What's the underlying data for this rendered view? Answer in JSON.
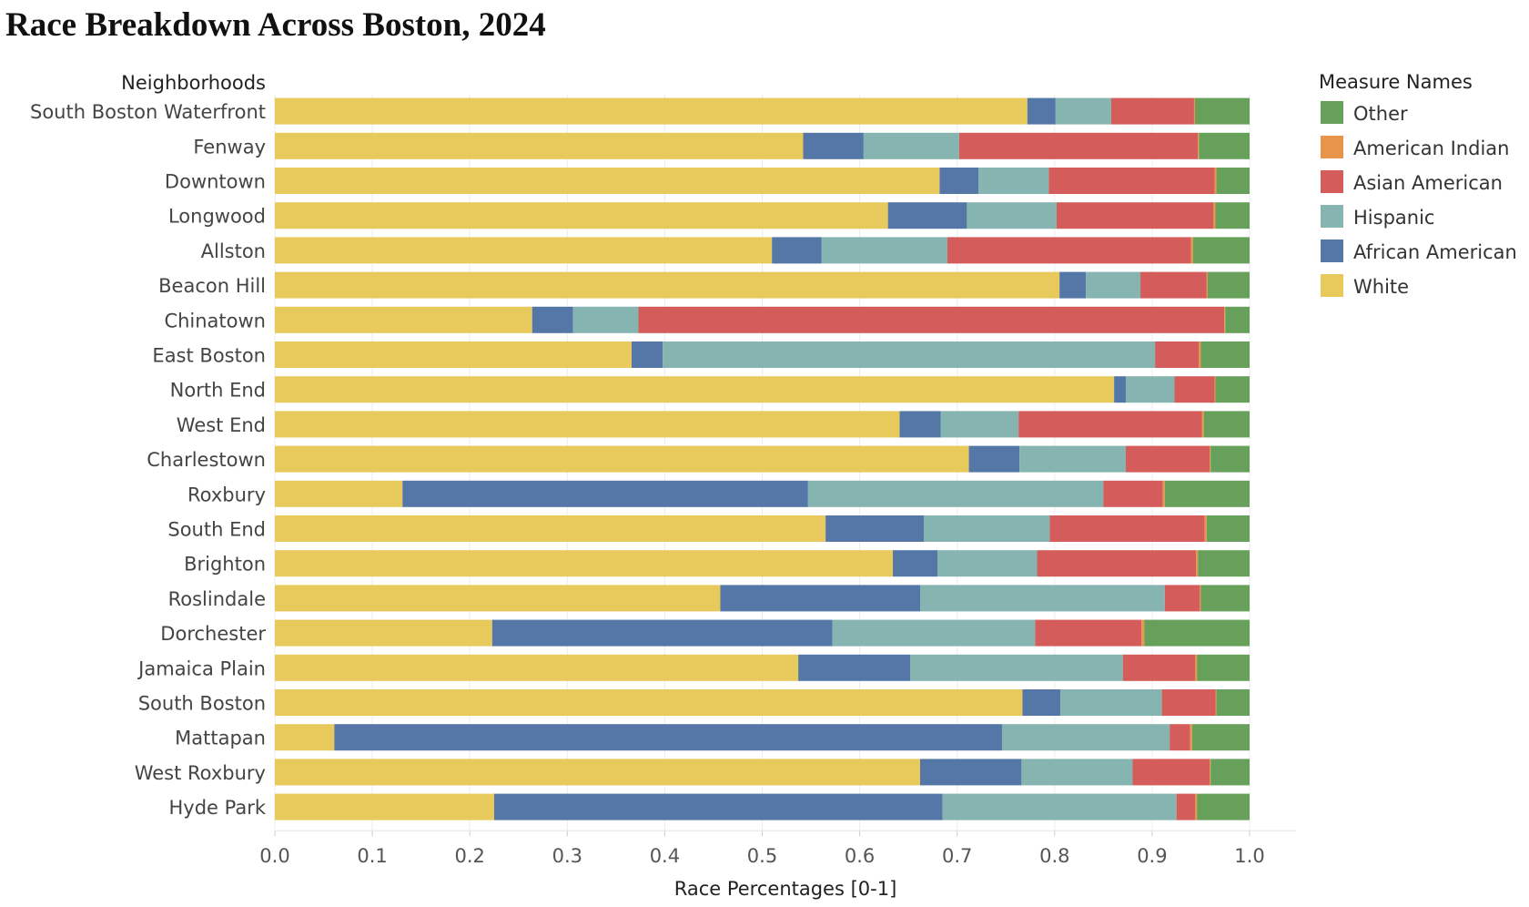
{
  "chart_data": {
    "type": "bar",
    "orientation": "horizontal",
    "stacked": true,
    "title": "Race Breakdown Across Boston, 2024",
    "xlabel": "Race Percentages [0-1]",
    "ylabel": "Neighborhoods",
    "xlim": [
      0,
      1
    ],
    "xticks": [
      "0.0",
      "0.1",
      "0.2",
      "0.3",
      "0.4",
      "0.5",
      "0.6",
      "0.7",
      "0.8",
      "0.9",
      "1.0"
    ],
    "grid": "vertical",
    "legend_title": "Measure Names",
    "legend_position": "right",
    "categories": [
      "South Boston Waterfront",
      "Fenway",
      "Downtown",
      "Longwood",
      "Allston",
      "Beacon Hill",
      "Chinatown",
      "East Boston",
      "North End",
      "West End",
      "Charlestown",
      "Roxbury",
      "South End",
      "Brighton",
      "Roslindale",
      "Dorchester",
      "Jamaica Plain",
      "South Boston",
      "Mattapan",
      "West Roxbury",
      "Hyde Park"
    ],
    "series": [
      {
        "name": "White",
        "color": "#e8c95c",
        "values": [
          0.772,
          0.542,
          0.682,
          0.629,
          0.51,
          0.805,
          0.264,
          0.366,
          0.861,
          0.641,
          0.712,
          0.131,
          0.565,
          0.634,
          0.457,
          0.223,
          0.537,
          0.767,
          0.061,
          0.662,
          0.225
        ]
      },
      {
        "name": "African American",
        "color": "#5577a8",
        "values": [
          0.029,
          0.062,
          0.04,
          0.081,
          0.051,
          0.027,
          0.042,
          0.032,
          0.012,
          0.042,
          0.052,
          0.416,
          0.101,
          0.046,
          0.205,
          0.349,
          0.115,
          0.039,
          0.685,
          0.104,
          0.46
        ]
      },
      {
        "name": "Hispanic",
        "color": "#86b4b0",
        "values": [
          0.057,
          0.098,
          0.072,
          0.092,
          0.129,
          0.056,
          0.067,
          0.505,
          0.05,
          0.08,
          0.109,
          0.303,
          0.129,
          0.102,
          0.251,
          0.208,
          0.218,
          0.104,
          0.172,
          0.114,
          0.24
        ]
      },
      {
        "name": "Asian American",
        "color": "#d45d5b",
        "values": [
          0.085,
          0.245,
          0.17,
          0.161,
          0.25,
          0.068,
          0.601,
          0.045,
          0.041,
          0.188,
          0.086,
          0.061,
          0.159,
          0.163,
          0.036,
          0.109,
          0.074,
          0.055,
          0.021,
          0.079,
          0.019
        ]
      },
      {
        "name": "American Indian",
        "color": "#e8944a",
        "values": [
          0.001,
          0.001,
          0.002,
          0.002,
          0.002,
          0.001,
          0.001,
          0.002,
          0.001,
          0.002,
          0.001,
          0.002,
          0.002,
          0.002,
          0.001,
          0.003,
          0.002,
          0.001,
          0.002,
          0.001,
          0.002
        ]
      },
      {
        "name": "Other",
        "color": "#66a05a",
        "values": [
          0.056,
          0.052,
          0.034,
          0.035,
          0.058,
          0.043,
          0.025,
          0.05,
          0.035,
          0.047,
          0.04,
          0.087,
          0.044,
          0.053,
          0.05,
          0.108,
          0.054,
          0.034,
          0.059,
          0.04,
          0.054
        ]
      }
    ],
    "legend_order": [
      "Other",
      "American Indian",
      "Asian American",
      "Hispanic",
      "African American",
      "White"
    ]
  }
}
